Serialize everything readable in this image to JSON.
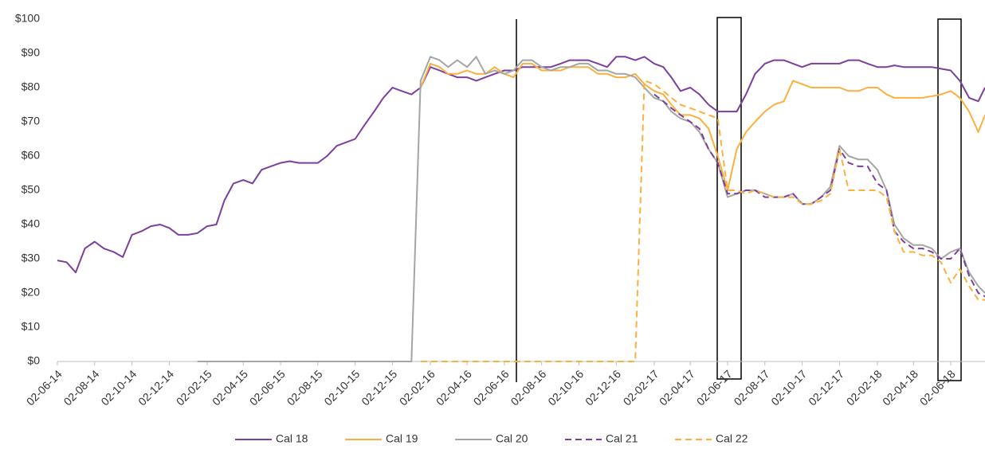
{
  "chart_data": {
    "type": "line",
    "x": [
      "2014-06-02",
      "2014-06-17",
      "2014-07-02",
      "2014-07-17",
      "2014-08-02",
      "2014-08-17",
      "2014-09-02",
      "2014-09-17",
      "2014-10-02",
      "2014-10-17",
      "2014-11-02",
      "2014-11-17",
      "2014-12-02",
      "2014-12-17",
      "2015-01-02",
      "2015-01-17",
      "2015-02-02",
      "2015-02-17",
      "2015-03-02",
      "2015-03-17",
      "2015-04-02",
      "2015-04-17",
      "2015-05-02",
      "2015-05-17",
      "2015-06-02",
      "2015-06-17",
      "2015-07-02",
      "2015-07-17",
      "2015-08-02",
      "2015-08-17",
      "2015-09-02",
      "2015-09-17",
      "2015-10-02",
      "2015-10-17",
      "2015-11-02",
      "2015-11-17",
      "2015-12-02",
      "2015-12-17",
      "2016-01-02",
      "2016-01-17",
      "2016-02-02",
      "2016-02-17",
      "2016-03-02",
      "2016-03-17",
      "2016-04-02",
      "2016-04-17",
      "2016-05-02",
      "2016-05-17",
      "2016-06-02",
      "2016-06-17",
      "2016-07-02",
      "2016-07-17",
      "2016-08-02",
      "2016-08-17",
      "2016-09-02",
      "2016-09-17",
      "2016-10-02",
      "2016-10-17",
      "2016-11-02",
      "2016-11-17",
      "2016-12-02",
      "2016-12-17",
      "2017-01-02",
      "2017-01-17",
      "2017-02-02",
      "2017-02-17",
      "2017-03-02",
      "2017-03-17",
      "2017-04-02",
      "2017-04-17",
      "2017-05-02",
      "2017-05-17",
      "2017-06-02",
      "2017-06-17",
      "2017-07-02",
      "2017-07-17",
      "2017-08-02",
      "2017-08-17",
      "2017-09-02",
      "2017-09-17",
      "2017-10-02",
      "2017-10-17",
      "2017-11-02",
      "2017-11-17",
      "2017-12-02",
      "2017-12-17",
      "2018-01-02",
      "2018-01-17",
      "2018-02-02",
      "2018-02-17",
      "2018-03-02",
      "2018-03-17",
      "2018-04-02",
      "2018-04-17",
      "2018-05-02",
      "2018-05-17",
      "2018-06-02",
      "2018-06-17",
      "2018-07-02",
      "2018-07-17",
      "2018-07-28"
    ],
    "xlim": [
      "2014-06-02",
      "2018-07-28"
    ],
    "xticks": [
      {
        "value": "2014-06-02",
        "label": "02-06-14"
      },
      {
        "value": "2014-08-02",
        "label": "02-08-14"
      },
      {
        "value": "2014-10-02",
        "label": "02-10-14"
      },
      {
        "value": "2014-12-02",
        "label": "02-12-14"
      },
      {
        "value": "2015-02-02",
        "label": "02-02-15"
      },
      {
        "value": "2015-04-02",
        "label": "02-04-15"
      },
      {
        "value": "2015-06-02",
        "label": "02-06-15"
      },
      {
        "value": "2015-08-02",
        "label": "02-08-15"
      },
      {
        "value": "2015-10-02",
        "label": "02-10-15"
      },
      {
        "value": "2015-12-02",
        "label": "02-12-15"
      },
      {
        "value": "2016-02-02",
        "label": "02-02-16"
      },
      {
        "value": "2016-04-02",
        "label": "02-04-16"
      },
      {
        "value": "2016-06-02",
        "label": "02-06-16"
      },
      {
        "value": "2016-08-02",
        "label": "02-08-16"
      },
      {
        "value": "2016-10-02",
        "label": "02-10-16"
      },
      {
        "value": "2016-12-02",
        "label": "02-12-16"
      },
      {
        "value": "2017-02-02",
        "label": "02-02-17"
      },
      {
        "value": "2017-04-02",
        "label": "02-04-17"
      },
      {
        "value": "2017-06-02",
        "label": "02-06-17"
      },
      {
        "value": "2017-08-02",
        "label": "02-08-17"
      },
      {
        "value": "2017-10-02",
        "label": "02-10-17"
      },
      {
        "value": "2017-12-02",
        "label": "02-12-17"
      },
      {
        "value": "2018-02-02",
        "label": "02-02-18"
      },
      {
        "value": "2018-04-02",
        "label": "02-04-18"
      },
      {
        "value": "2018-06-02",
        "label": "02-06-18"
      }
    ],
    "ylim": [
      0,
      100
    ],
    "yticks": [
      {
        "value": 0,
        "label": "$0"
      },
      {
        "value": 10,
        "label": "$10"
      },
      {
        "value": 20,
        "label": "$20"
      },
      {
        "value": 30,
        "label": "$30"
      },
      {
        "value": 40,
        "label": "$40"
      },
      {
        "value": 50,
        "label": "$50"
      },
      {
        "value": 60,
        "label": "$60"
      },
      {
        "value": 70,
        "label": "$70"
      },
      {
        "value": 80,
        "label": "$80"
      },
      {
        "value": 90,
        "label": "$90"
      },
      {
        "value": 100,
        "label": "$100"
      }
    ],
    "grid": false,
    "legend": "bottom",
    "series": [
      {
        "name": "Cal 18",
        "color": "#7b3f9e",
        "line_style": "solid",
        "values": [
          29.5,
          29,
          26,
          33,
          35,
          33,
          32,
          30.5,
          37,
          38,
          39.5,
          40,
          39,
          37,
          37,
          37.5,
          39.5,
          40,
          47,
          52,
          53,
          52,
          56,
          57,
          58,
          58.5,
          58,
          58,
          58,
          60,
          63,
          64,
          65,
          69,
          73,
          77,
          80,
          79,
          78,
          80,
          86,
          85,
          84,
          83,
          83,
          82,
          83,
          84,
          85,
          85,
          86,
          86,
          86,
          86,
          87,
          88,
          88,
          88,
          87,
          86,
          89,
          89,
          88,
          89,
          87,
          86,
          83,
          79,
          80,
          78,
          75,
          73,
          73,
          73,
          78,
          84,
          87,
          88,
          88,
          87,
          86,
          87,
          87,
          87,
          87,
          88,
          88,
          87,
          86,
          86,
          86.5,
          86,
          86,
          86,
          86,
          85.5,
          85,
          82,
          77,
          76,
          80
        ]
      },
      {
        "name": "Cal 19",
        "color": "#fbb040",
        "line_style": "solid",
        "values": [
          null,
          null,
          null,
          null,
          null,
          null,
          null,
          null,
          null,
          null,
          null,
          null,
          null,
          null,
          null,
          null,
          null,
          null,
          null,
          null,
          null,
          null,
          null,
          null,
          null,
          null,
          null,
          null,
          null,
          null,
          null,
          null,
          null,
          null,
          null,
          null,
          null,
          null,
          null,
          80,
          87,
          86,
          84,
          84,
          85,
          84,
          84,
          86,
          84,
          83,
          87,
          87,
          85,
          85,
          85,
          86,
          86,
          86,
          84,
          84,
          83,
          83,
          84,
          81,
          79,
          78,
          75,
          72,
          72,
          71,
          68,
          60,
          50,
          62,
          67,
          70,
          73,
          75,
          76,
          82,
          81,
          80,
          80,
          80,
          80,
          79,
          79,
          80,
          80,
          78,
          77,
          77,
          77,
          77,
          77.5,
          78,
          79,
          77,
          73,
          67,
          72
        ]
      },
      {
        "name": "Cal 20",
        "color": "#a5a5a5",
        "line_style": "solid",
        "values": [
          null,
          null,
          null,
          null,
          null,
          null,
          null,
          null,
          null,
          null,
          null,
          null,
          null,
          null,
          null,
          0,
          0,
          0,
          0,
          0,
          0,
          0,
          0,
          0,
          0,
          0,
          0,
          0,
          0,
          0,
          0,
          0,
          0,
          0,
          0,
          0,
          0,
          0,
          0,
          82,
          89,
          88,
          86,
          88,
          86,
          89,
          84,
          85,
          84,
          85,
          88,
          88,
          86,
          85,
          86,
          86,
          87,
          87,
          85,
          85,
          84,
          84,
          83,
          80,
          77,
          76,
          73,
          71,
          70,
          67,
          62,
          58,
          48,
          49,
          50,
          50,
          49,
          48,
          48,
          49,
          46,
          46,
          48,
          51,
          63,
          60,
          59,
          59,
          56,
          50,
          40,
          36,
          34,
          34,
          33,
          30,
          32,
          33,
          26,
          22,
          20
        ]
      },
      {
        "name": "Cal 21",
        "color": "#7b3f9e",
        "line_style": "dashed",
        "values": [
          null,
          null,
          null,
          null,
          null,
          null,
          null,
          null,
          null,
          null,
          null,
          null,
          null,
          null,
          null,
          null,
          null,
          null,
          null,
          null,
          null,
          null,
          null,
          null,
          null,
          null,
          null,
          null,
          null,
          null,
          null,
          null,
          null,
          null,
          null,
          null,
          null,
          null,
          null,
          null,
          null,
          null,
          null,
          null,
          null,
          null,
          null,
          null,
          null,
          null,
          null,
          null,
          null,
          null,
          null,
          null,
          null,
          null,
          null,
          null,
          null,
          null,
          null,
          null,
          78,
          76,
          74,
          72,
          70,
          68,
          62,
          58,
          49,
          49,
          50,
          50,
          48,
          48,
          48,
          49,
          46,
          46,
          48,
          50,
          62,
          58,
          57,
          57,
          52,
          50,
          38,
          35,
          33,
          33,
          32,
          30,
          30,
          33,
          25,
          20,
          19
        ]
      },
      {
        "name": "Cal 22",
        "color": "#fbb040",
        "line_style": "dashed",
        "values": [
          null,
          null,
          null,
          null,
          null,
          null,
          null,
          null,
          null,
          null,
          null,
          null,
          null,
          null,
          null,
          null,
          null,
          null,
          null,
          null,
          null,
          null,
          null,
          null,
          null,
          null,
          null,
          null,
          null,
          null,
          null,
          null,
          null,
          null,
          null,
          null,
          null,
          null,
          null,
          0,
          0,
          0,
          0,
          0,
          0,
          0,
          0,
          0,
          0,
          0,
          0,
          0,
          0,
          0,
          0,
          0,
          0,
          0,
          0,
          0,
          0,
          0,
          0,
          82,
          81,
          79,
          77,
          75,
          74,
          73,
          72,
          71,
          50,
          50,
          49,
          50,
          49,
          48,
          48,
          48,
          46,
          46,
          47,
          49,
          62,
          50,
          50,
          50,
          50,
          48,
          38,
          32,
          32,
          31,
          31,
          29,
          23,
          27,
          22,
          18,
          18
        ]
      }
    ]
  }
}
